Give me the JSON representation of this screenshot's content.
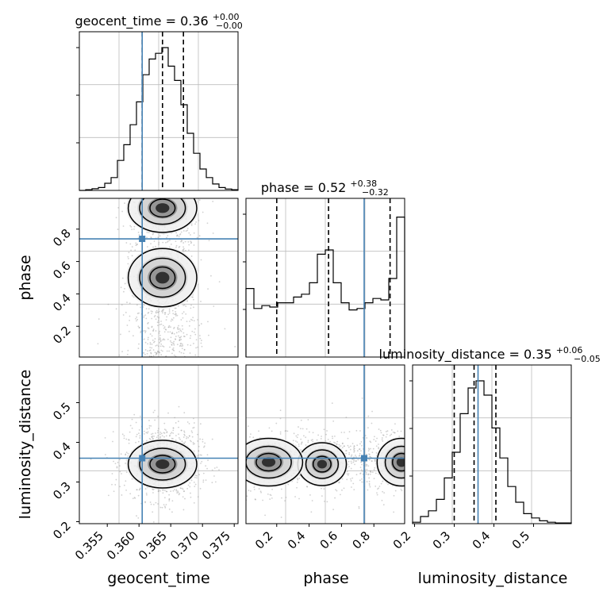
{
  "chart_data": {
    "type": "corner",
    "params": [
      "geocent_time",
      "phase",
      "luminosity_distance"
    ],
    "truths": {
      "geocent_time": 0.3605,
      "phase": 0.74,
      "luminosity_distance": 0.36
    },
    "truth_color": "#4682b4",
    "ranges": {
      "geocent_time": [
        0.3506,
        0.3756
      ],
      "phase": [
        0.01,
        0.99
      ],
      "luminosity_distance": [
        0.195,
        0.595
      ]
    },
    "ticks": {
      "geocent_time": [
        "0.355",
        "0.360",
        "0.365",
        "0.370",
        "0.375"
      ],
      "phase": [
        "0.2",
        "0.4",
        "0.6",
        "0.8"
      ],
      "luminosity_distance": [
        "0.2",
        "0.3",
        "0.4",
        "0.5"
      ]
    },
    "axis_labels": {
      "geocent_time": "geocent_time",
      "phase": "phase",
      "luminosity_distance": "luminosity_distance"
    },
    "titles": {
      "geocent_time": {
        "prefix": "geocent_time = ",
        "median": "0.36",
        "plus": "+0.00",
        "minus": "−0.00"
      },
      "phase": {
        "prefix": "phase = ",
        "median": "0.52",
        "plus": "+0.38",
        "minus": "−0.32"
      },
      "luminosity_distance": {
        "prefix": "luminosity_distance = ",
        "median": "0.35",
        "plus": "+0.06",
        "minus": "−0.05"
      }
    },
    "quantiles": {
      "geocent_time": [
        0.3605,
        0.3637,
        0.367
      ],
      "phase": [
        0.2,
        0.52,
        0.9
      ],
      "luminosity_distance": [
        0.3,
        0.35,
        0.405
      ]
    },
    "histograms": {
      "geocent_time": [
        0,
        0.005,
        0.012,
        0.02,
        0.05,
        0.09,
        0.21,
        0.32,
        0.46,
        0.62,
        0.81,
        0.92,
        0.96,
        1.0,
        0.87,
        0.77,
        0.6,
        0.4,
        0.26,
        0.15,
        0.09,
        0.045,
        0.02,
        0.01,
        0.005
      ],
      "phase": [
        0.48,
        0.34,
        0.36,
        0.35,
        0.38,
        0.38,
        0.42,
        0.44,
        0.52,
        0.72,
        0.75,
        0.52,
        0.38,
        0.33,
        0.34,
        0.38,
        0.41,
        0.4,
        0.55,
        0.98
      ],
      "luminosity_distance": [
        0.01,
        0.05,
        0.09,
        0.17,
        0.32,
        0.5,
        0.77,
        0.95,
        1.0,
        0.9,
        0.67,
        0.46,
        0.26,
        0.15,
        0.07,
        0.04,
        0.02,
        0.01,
        0.005,
        0.005
      ]
    },
    "grid": true
  }
}
